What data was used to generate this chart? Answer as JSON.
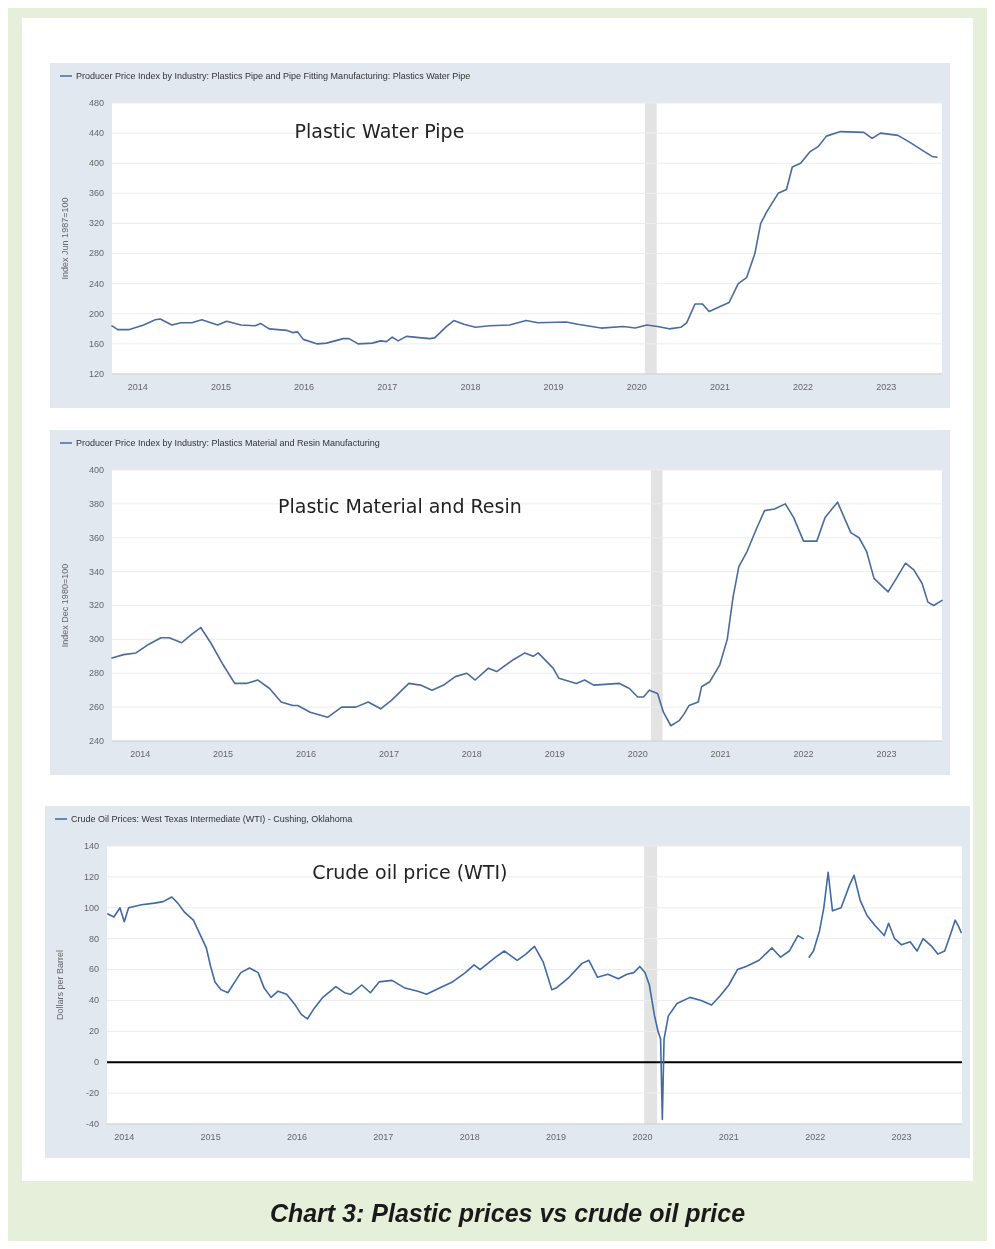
{
  "chart_data": [
    {
      "type": "line",
      "ylabel": "Index Jun 1987=100",
      "annotations": [
        "Plastic Water Pipe"
      ],
      "legend": "top left",
      "grid": "y",
      "xlim": [
        2013.69,
        2023.67
      ],
      "xticks": [
        2014,
        2015,
        2016,
        2017,
        2018,
        2019,
        2020,
        2021,
        2022,
        2023
      ],
      "ylim": [
        120,
        480
      ],
      "yticks": [
        120,
        160,
        200,
        240,
        280,
        320,
        360,
        400,
        440,
        480
      ],
      "bands": [
        {
          "axis": "x",
          "from": 2020.1,
          "to": 2020.24,
          "color": "#e3e3e3"
        }
      ],
      "x": [
        2013.69,
        2013.76,
        2013.9,
        2014.07,
        2014.21,
        2014.27,
        2014.41,
        2014.52,
        2014.65,
        2014.77,
        2014.96,
        2015.07,
        2015.24,
        2015.41,
        2015.48,
        2015.58,
        2015.79,
        2015.86,
        2015.92,
        2015.99,
        2016.16,
        2016.27,
        2016.47,
        2016.54,
        2016.65,
        2016.82,
        2016.92,
        2016.99,
        2017.06,
        2017.13,
        2017.23,
        2017.51,
        2017.57,
        2017.71,
        2017.8,
        2017.92,
        2018.06,
        2018.23,
        2018.47,
        2018.67,
        2018.81,
        2019.15,
        2019.29,
        2019.57,
        2019.84,
        2019.98,
        2020.12,
        2020.25,
        2020.39,
        2020.53,
        2020.6,
        2020.7,
        2020.79,
        2020.87,
        2021.11,
        2021.22,
        2021.32,
        2021.42,
        2021.49,
        2021.56,
        2021.7,
        2021.8,
        2021.87,
        2021.97,
        2022.08,
        2022.18,
        2022.28,
        2022.45,
        2022.73,
        2022.83,
        2022.93,
        2023.14,
        2023.28,
        2023.42,
        2023.55,
        2023.61
      ],
      "series": [
        {
          "name": "Producer Price Index by Industry: Plastics Pipe and Pipe Fitting Manufacturing: Plastics Water Pipe",
          "color": "#4a6b9d",
          "values": [
            184,
            179,
            179,
            185,
            192,
            193,
            185,
            188,
            188,
            192,
            185,
            190,
            185,
            184,
            187,
            180,
            178,
            175,
            176,
            166,
            160,
            161,
            167,
            167,
            160,
            161,
            164,
            163,
            169,
            164,
            170,
            167,
            168,
            183,
            191,
            186,
            182,
            184,
            185,
            191,
            188,
            189,
            186,
            181,
            183,
            181,
            185,
            183,
            180,
            182,
            188,
            213,
            213,
            203,
            215,
            240,
            248,
            280,
            320,
            335,
            360,
            365,
            395,
            400,
            415,
            422,
            436,
            442,
            441,
            433,
            440,
            437,
            428,
            418,
            409,
            408
          ]
        }
      ]
    },
    {
      "type": "line",
      "ylabel": "Index Dec 1980=100",
      "annotations": [
        "Plastic Material and Resin"
      ],
      "legend": "top left",
      "grid": "y",
      "xlim": [
        2013.66,
        2023.67
      ],
      "xticks": [
        2014,
        2015,
        2016,
        2017,
        2018,
        2019,
        2020,
        2021,
        2022,
        2023
      ],
      "ylim": [
        240,
        400
      ],
      "yticks": [
        240,
        260,
        280,
        300,
        320,
        340,
        360,
        380,
        400
      ],
      "bands": [
        {
          "axis": "x",
          "from": 2020.16,
          "to": 2020.3,
          "color": "#e3e3e3"
        }
      ],
      "x": [
        2013.66,
        2013.8,
        2013.95,
        2014.1,
        2014.25,
        2014.35,
        2014.5,
        2014.62,
        2014.73,
        2014.85,
        2015.0,
        2015.14,
        2015.28,
        2015.42,
        2015.56,
        2015.7,
        2015.84,
        2015.9,
        2016.05,
        2016.26,
        2016.43,
        2016.6,
        2016.75,
        2016.9,
        2017.03,
        2017.24,
        2017.38,
        2017.52,
        2017.66,
        2017.8,
        2017.94,
        2018.04,
        2018.2,
        2018.3,
        2018.5,
        2018.64,
        2018.74,
        2018.8,
        2018.98,
        2019.05,
        2019.26,
        2019.36,
        2019.47,
        2019.78,
        2019.9,
        2020.0,
        2020.07,
        2020.14,
        2020.24,
        2020.31,
        2020.4,
        2020.5,
        2020.56,
        2020.62,
        2020.73,
        2020.77,
        2020.87,
        2020.99,
        2021.08,
        2021.15,
        2021.22,
        2021.32,
        2021.43,
        2021.53,
        2021.65,
        2021.78,
        2021.88,
        2022.0,
        2022.16,
        2022.26,
        2022.41,
        2022.57,
        2022.67,
        2022.76,
        2022.85,
        2023.02,
        2023.12,
        2023.23,
        2023.33,
        2023.43,
        2023.5,
        2023.57,
        2023.67
      ],
      "series": [
        {
          "name": "Producer Price Index by Industry: Plastics Material and Resin Manufacturing",
          "color": "#4a6b9d",
          "values": [
            289,
            291,
            292,
            297,
            301,
            301,
            298,
            303,
            307,
            298,
            285,
            274,
            274,
            276,
            271,
            263,
            261,
            261,
            257,
            254,
            260,
            260,
            263,
            259,
            264,
            274,
            273,
            270,
            273,
            278,
            280,
            276,
            283,
            281,
            288,
            292,
            290,
            292,
            283,
            277,
            274,
            276,
            273,
            274,
            271,
            266,
            266,
            270,
            268,
            257,
            249,
            252,
            256,
            261,
            263,
            272,
            275,
            285,
            300,
            325,
            343,
            352,
            365,
            376,
            377,
            380,
            372,
            358,
            358,
            372,
            381,
            363,
            360,
            352,
            336,
            328,
            336,
            345,
            341,
            333,
            322,
            320,
            323
          ]
        }
      ]
    },
    {
      "type": "line",
      "ylabel": "Dollars per Barrel",
      "annotations": [
        "Crude oil price (WTI)",
        "Chart 3: Plastic prices vs crude oil price"
      ],
      "legend": "top left",
      "grid": "y",
      "xlim": [
        2013.8,
        2023.7
      ],
      "xticks": [
        2014,
        2015,
        2016,
        2017,
        2018,
        2019,
        2020,
        2021,
        2022,
        2023
      ],
      "ylim": [
        -40,
        140
      ],
      "yticks": [
        -40,
        -20,
        0,
        20,
        40,
        60,
        80,
        100,
        120,
        140
      ],
      "bands": [
        {
          "axis": "x",
          "from": 2020.02,
          "to": 2020.17,
          "color": "#e3e3e3"
        }
      ],
      "ref_lines": [
        {
          "axis": "y",
          "value": 0,
          "color": "#000000"
        }
      ],
      "x": [
        2013.81,
        2013.88,
        2013.95,
        2014.0,
        2014.05,
        2014.2,
        2014.35,
        2014.45,
        2014.55,
        2014.62,
        2014.7,
        2014.8,
        2014.9,
        2014.95,
        2015.0,
        2015.05,
        2015.12,
        2015.2,
        2015.28,
        2015.35,
        2015.45,
        2015.55,
        2015.62,
        2015.7,
        2015.78,
        2015.88,
        2015.98,
        2016.05,
        2016.12,
        2016.2,
        2016.3,
        2016.45,
        2016.55,
        2016.62,
        2016.75,
        2016.85,
        2016.95,
        2017.1,
        2017.25,
        2017.4,
        2017.5,
        2017.65,
        2017.8,
        2017.95,
        2018.05,
        2018.12,
        2018.3,
        2018.4,
        2018.55,
        2018.65,
        2018.75,
        2018.85,
        2018.95,
        2019.0,
        2019.15,
        2019.3,
        2019.38,
        2019.48,
        2019.6,
        2019.72,
        2019.82,
        2019.9,
        2019.97,
        2020.03,
        2020.08,
        2020.14,
        2020.18,
        2020.21,
        2020.23,
        2020.25,
        2020.3,
        2020.4,
        2020.55,
        2020.68,
        2020.8,
        2020.9,
        2021.0,
        2021.1,
        2021.2,
        2021.35,
        2021.5,
        2021.6,
        2021.7,
        2021.8,
        2021.86,
        2021.9,
        2021.93,
        2021.98,
        2022.05,
        2022.1,
        2022.15,
        2022.2,
        2022.3,
        2022.4,
        2022.45,
        2022.52,
        2022.6,
        2022.7,
        2022.8,
        2022.85,
        2022.92,
        2023.0,
        2023.1,
        2023.18,
        2023.25,
        2023.35,
        2023.42,
        2023.5,
        2023.58,
        2023.62,
        2023.66,
        2023.69
      ],
      "series": [
        {
          "name": "Crude Oil Prices: West Texas Intermediate (WTI) - Cushing, Oklahoma",
          "color": "#3f6aa3",
          "values": [
            96,
            94,
            100,
            91,
            100,
            102,
            103,
            104,
            107,
            103,
            97,
            92,
            80,
            74,
            62,
            52,
            47,
            45,
            52,
            58,
            61,
            58,
            48,
            42,
            46,
            44,
            37,
            31,
            28,
            35,
            42,
            49,
            45,
            44,
            50,
            45,
            52,
            53,
            48,
            46,
            44,
            48,
            52,
            58,
            63,
            60,
            68,
            72,
            66,
            70,
            75,
            65,
            47,
            48,
            55,
            64,
            66,
            55,
            57,
            54,
            57,
            58,
            62,
            58,
            50,
            30,
            20,
            15,
            -37,
            15,
            30,
            38,
            42,
            40,
            37,
            43,
            50,
            60,
            62,
            66,
            74,
            68,
            72,
            82,
            80,
            null,
            68,
            72,
            85,
            100,
            123,
            98,
            100,
            115,
            121,
            105,
            95,
            88,
            82,
            90,
            80,
            76,
            78,
            72,
            80,
            75,
            70,
            72,
            85,
            92,
            88,
            84
          ]
        }
      ]
    }
  ]
}
